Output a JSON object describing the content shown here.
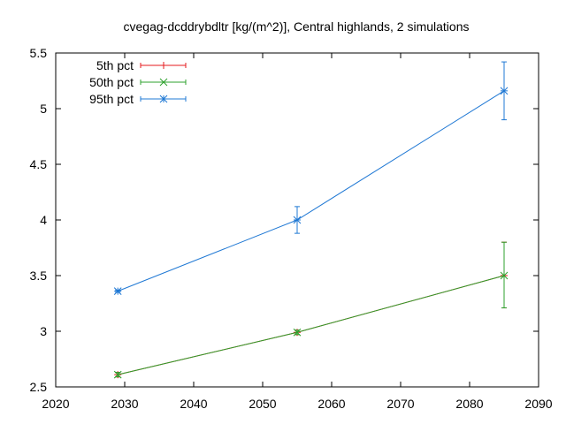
{
  "chart_data": {
    "type": "line",
    "title": "cvegag-dcddrybdltr [kg/(m^2)], Central highlands, 2 simulations",
    "xlabel": "",
    "ylabel": "",
    "xlim": [
      2020,
      2090
    ],
    "ylim": [
      2.5,
      5.5
    ],
    "xticks": [
      2020,
      2030,
      2040,
      2050,
      2060,
      2070,
      2080,
      2090
    ],
    "yticks": [
      2.5,
      3,
      3.5,
      4,
      4.5,
      5,
      5.5
    ],
    "ytick_labels": [
      "2.5",
      "3",
      "3.5",
      "4",
      "4.5",
      "5",
      "5.5"
    ],
    "grid": false,
    "legend_position": "top-left",
    "series": [
      {
        "name": "5th pct",
        "color": "#e41a1c",
        "marker": "plus",
        "points": [
          {
            "x": 2029,
            "y": 2.61,
            "lo": 2.59,
            "hi": 2.63
          },
          {
            "x": 2055,
            "y": 2.99,
            "lo": 2.97,
            "hi": 3.01
          },
          {
            "x": 2085,
            "y": 3.5,
            "lo": 3.21,
            "hi": 3.8
          }
        ]
      },
      {
        "name": "50th pct",
        "color": "#2ca02c",
        "marker": "cross",
        "points": [
          {
            "x": 2029,
            "y": 2.61,
            "lo": 2.59,
            "hi": 2.63
          },
          {
            "x": 2055,
            "y": 2.99,
            "lo": 2.97,
            "hi": 3.01
          },
          {
            "x": 2085,
            "y": 3.5,
            "lo": 3.21,
            "hi": 3.8
          }
        ]
      },
      {
        "name": "95th pct",
        "color": "#1f78d4",
        "marker": "star",
        "points": [
          {
            "x": 2029,
            "y": 3.36,
            "lo": 3.35,
            "hi": 3.37
          },
          {
            "x": 2055,
            "y": 4.0,
            "lo": 3.88,
            "hi": 4.12
          },
          {
            "x": 2085,
            "y": 5.16,
            "lo": 4.9,
            "hi": 5.42
          }
        ]
      }
    ]
  }
}
